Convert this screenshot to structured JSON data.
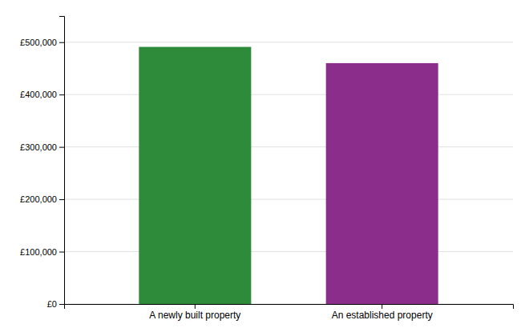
{
  "chart_data": {
    "type": "bar",
    "categories": [
      "A newly built property",
      "An established property"
    ],
    "values": [
      491000,
      460000
    ],
    "colors": [
      "#2e8b3a",
      "#8b2d8b"
    ],
    "ylim": [
      0,
      550000
    ],
    "yticks": [
      {
        "value": 0,
        "label": "£0"
      },
      {
        "value": 100000,
        "label": "£100,000"
      },
      {
        "value": 200000,
        "label": "£200,000"
      },
      {
        "value": 300000,
        "label": "£300,000"
      },
      {
        "value": 400000,
        "label": "£400,000"
      },
      {
        "value": 500000,
        "label": "£500,000"
      }
    ],
    "grid": true
  }
}
